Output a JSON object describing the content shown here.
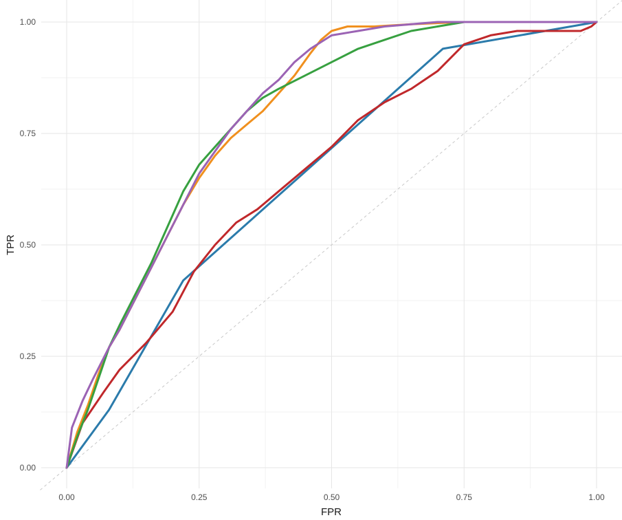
{
  "chart_data": {
    "type": "line",
    "title": "",
    "xlabel": "FPR",
    "ylabel": "TPR",
    "xlim": [
      0,
      1
    ],
    "ylim": [
      0,
      1
    ],
    "grid": true,
    "legend": "none",
    "x_ticks": [
      "0.00",
      "0.25",
      "0.50",
      "0.75",
      "1.00"
    ],
    "y_ticks": [
      "0.00",
      "0.25",
      "0.50",
      "0.75",
      "1.00"
    ],
    "tick_values": [
      0,
      0.25,
      0.5,
      0.75,
      1
    ],
    "reference_line": {
      "x": [
        0,
        1
      ],
      "y": [
        0,
        1
      ],
      "color": "#c8c8c8",
      "style": "dashed"
    },
    "series": [
      {
        "color": "#2b7bab",
        "x": [
          0,
          0.08,
          0.22,
          0.71,
          1.0
        ],
        "y": [
          0,
          0.13,
          0.42,
          0.94,
          1.0
        ]
      },
      {
        "color": "#c0282b",
        "x": [
          0,
          0.03,
          0.07,
          0.1,
          0.15,
          0.2,
          0.24,
          0.28,
          0.32,
          0.36,
          0.4,
          0.45,
          0.5,
          0.55,
          0.6,
          0.65,
          0.7,
          0.75,
          0.8,
          0.85,
          0.9,
          0.95,
          0.97,
          0.99,
          1.0
        ],
        "y": [
          0,
          0.1,
          0.17,
          0.22,
          0.28,
          0.35,
          0.44,
          0.5,
          0.55,
          0.58,
          0.62,
          0.67,
          0.72,
          0.78,
          0.82,
          0.85,
          0.89,
          0.95,
          0.97,
          0.98,
          0.98,
          0.98,
          0.98,
          0.99,
          1.0
        ]
      },
      {
        "color": "#f0901e",
        "x": [
          0,
          0.02,
          0.04,
          0.06,
          0.08,
          0.1,
          0.13,
          0.16,
          0.19,
          0.22,
          0.25,
          0.28,
          0.31,
          0.34,
          0.37,
          0.4,
          0.43,
          0.46,
          0.48,
          0.5,
          0.53,
          0.58,
          0.65,
          0.75,
          0.85,
          1.0
        ],
        "y": [
          0,
          0.08,
          0.14,
          0.21,
          0.27,
          0.31,
          0.38,
          0.45,
          0.52,
          0.59,
          0.65,
          0.7,
          0.74,
          0.77,
          0.8,
          0.84,
          0.88,
          0.93,
          0.96,
          0.98,
          0.99,
          0.99,
          0.995,
          1.0,
          1.0,
          1.0
        ]
      },
      {
        "color": "#37a040",
        "x": [
          0,
          0.02,
          0.04,
          0.06,
          0.08,
          0.1,
          0.13,
          0.16,
          0.19,
          0.22,
          0.25,
          0.28,
          0.31,
          0.34,
          0.37,
          0.4,
          0.45,
          0.5,
          0.55,
          0.6,
          0.65,
          0.7,
          0.75,
          1.0
        ],
        "y": [
          0,
          0.07,
          0.13,
          0.2,
          0.27,
          0.32,
          0.39,
          0.46,
          0.54,
          0.62,
          0.68,
          0.72,
          0.76,
          0.8,
          0.83,
          0.85,
          0.88,
          0.91,
          0.94,
          0.96,
          0.98,
          0.99,
          1.0,
          1.0
        ]
      },
      {
        "color": "#9b63b4",
        "x": [
          0,
          0.01,
          0.03,
          0.05,
          0.08,
          0.1,
          0.13,
          0.16,
          0.19,
          0.22,
          0.25,
          0.28,
          0.31,
          0.34,
          0.37,
          0.4,
          0.43,
          0.46,
          0.5,
          0.55,
          0.6,
          0.65,
          0.7,
          0.75,
          0.85,
          1.0
        ],
        "y": [
          0,
          0.09,
          0.15,
          0.2,
          0.27,
          0.31,
          0.38,
          0.45,
          0.52,
          0.59,
          0.66,
          0.71,
          0.76,
          0.8,
          0.84,
          0.87,
          0.91,
          0.94,
          0.97,
          0.98,
          0.99,
          0.995,
          1.0,
          1.0,
          1.0,
          1.0
        ]
      }
    ]
  }
}
